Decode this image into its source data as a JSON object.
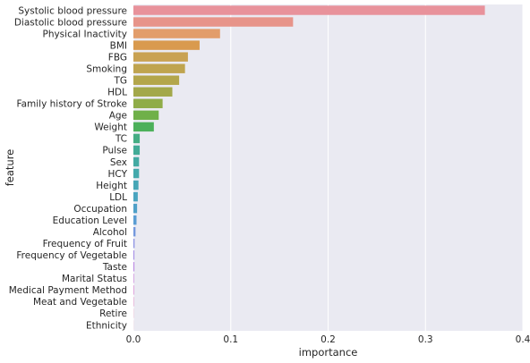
{
  "chart_data": {
    "type": "bar",
    "orientation": "horizontal",
    "xlabel": "importance",
    "ylabel": "feature",
    "xlim": [
      0,
      0.4
    ],
    "x_ticks": [
      "0.0",
      "0.1",
      "0.2",
      "0.3",
      "0.4"
    ],
    "grid": true,
    "style": "seaborn-darkgrid",
    "categories": [
      "Systolic blood pressure",
      "Diastolic blood pressure",
      "Physical Inactivity",
      "BMI",
      "FBG",
      "Smoking",
      "TG",
      "HDL",
      "Family history of Stroke",
      "Age",
      "Weight",
      "TC",
      "Pulse",
      "Sex",
      "HCY",
      "Height",
      "LDL",
      "Occupation",
      "Education Level",
      "Alcohol",
      "Frequency of Fruit",
      "Frequency of Vegetable",
      "Taste",
      "Marital Status",
      "Medical Payment Method",
      "Meat and Vegetable",
      "Retire",
      "Ethnicity"
    ],
    "values": [
      0.361,
      0.164,
      0.089,
      0.068,
      0.056,
      0.053,
      0.047,
      0.04,
      0.03,
      0.026,
      0.021,
      0.0065,
      0.0065,
      0.0058,
      0.0058,
      0.0052,
      0.0045,
      0.0038,
      0.0032,
      0.0022,
      0.0012,
      0.001,
      0.001,
      0.0006,
      0.0006,
      0.0004,
      0.0002,
      0.0001
    ],
    "colors": [
      "#e8929b",
      "#e7948a",
      "#e29d6b",
      "#d99a4e",
      "#c9a252",
      "#bfa44f",
      "#b3a64b",
      "#a3a84a",
      "#8fac48",
      "#6fb049",
      "#4cb05a",
      "#45ad84",
      "#42ab97",
      "#43aaa3",
      "#44a9ac",
      "#46a6b6",
      "#4aa4bf",
      "#4fa0c8",
      "#5a9dd3",
      "#7498dd",
      "#8f93e3",
      "#a68fe6",
      "#bb89e3",
      "#cd85dd",
      "#dc82d0",
      "#e585c0",
      "#e98bb2",
      "#eb8fa7"
    ]
  }
}
